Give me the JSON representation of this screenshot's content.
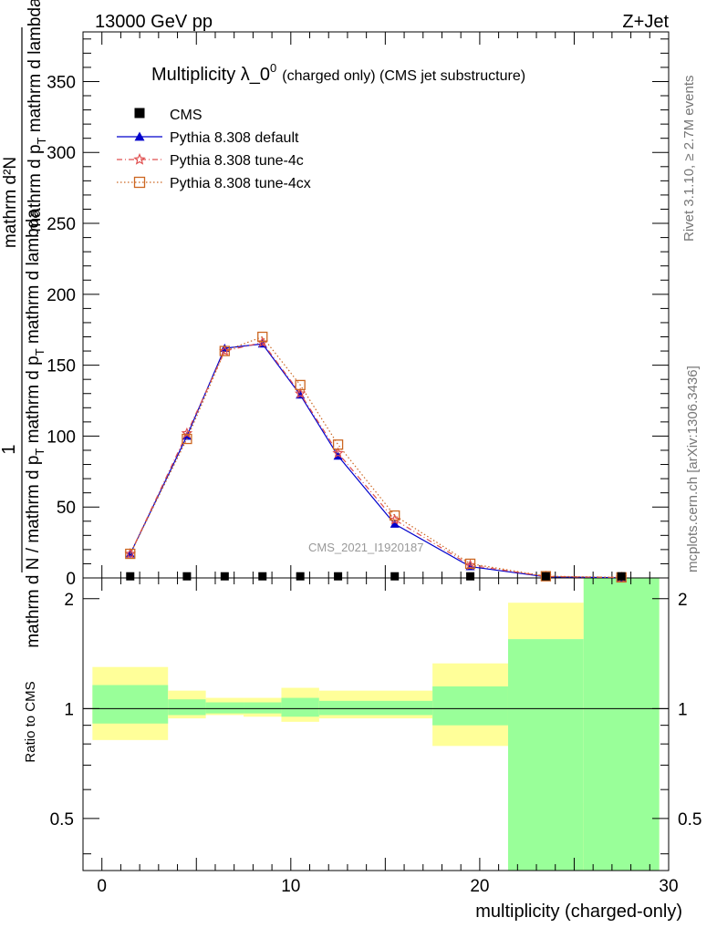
{
  "header": {
    "left": "13000 GeV pp",
    "right": "Z+Jet"
  },
  "title_main": "Multiplicity λ_0",
  "title_sup": "0",
  "title_small": "(charged only) (CMS jet substructure)",
  "side_top": "Rivet 3.1.10, ≥ 2.7M events",
  "side_bottom": "mcplots.cern.ch [arXiv:1306.3436]",
  "watermark": "CMS_2021_I1920187",
  "ylabel": {
    "one": "1",
    "frac_top": "mathrm d²N",
    "frac_top_b": "mathrm d p",
    "frac_top_sub": "T",
    "frac_top_c": " mathrm d lambda",
    "frac_bottom": "mathrm d N / mathrm d p",
    "frac_bottom_sub": "T",
    "frac_bottom_c": " mathrm d p",
    "frac_bottom_sub2": "T",
    "frac_bottom_d": " mathrm d lambda"
  },
  "ratio_ylabel": "Ratio to CMS",
  "xlabel": "multiplicity (charged-only)",
  "colors": {
    "default": "#0000cc",
    "tune4c": "#e05050",
    "tune4cx": "#cc6620",
    "band_inner": "#99ff99",
    "band_outer": "#ffff99"
  },
  "legend": [
    {
      "label": "CMS",
      "marker": "square"
    },
    {
      "label": "Pythia 8.308 default",
      "marker": "triangle"
    },
    {
      "label": "Pythia 8.308 tune-4c",
      "marker": "star"
    },
    {
      "label": "Pythia 8.308 tune-4cx",
      "marker": "open-square"
    }
  ],
  "chart_data": [
    {
      "type": "line",
      "panel": "main",
      "xlim": [
        -1,
        30
      ],
      "ylim": [
        0,
        385
      ],
      "yticks": [
        0,
        50,
        100,
        150,
        200,
        250,
        300,
        350
      ],
      "cms": {
        "x": [
          1.5,
          4.5,
          6.5,
          8.5,
          10.5,
          12.5,
          15.5,
          19.5,
          23.5,
          27.5
        ],
        "y": [
          0.5,
          0.5,
          0.5,
          0.5,
          0.5,
          0.5,
          0.5,
          0.5,
          0.5,
          0.5
        ]
      },
      "series": [
        {
          "name": "Pythia 8.308 default",
          "x": [
            1.5,
            4.5,
            6.5,
            8.5,
            10.5,
            12.5,
            15.5,
            19.5,
            23.5,
            27.5
          ],
          "y": [
            17,
            100,
            162,
            165,
            129,
            86,
            38,
            8,
            0.8,
            0.2
          ]
        },
        {
          "name": "Pythia 8.308 tune-4c",
          "x": [
            1.5,
            4.5,
            6.5,
            8.5,
            10.5,
            12.5,
            15.5,
            19.5,
            23.5,
            27.5
          ],
          "y": [
            17,
            102,
            160,
            166,
            130,
            88,
            41,
            9,
            1.0,
            0.3
          ]
        },
        {
          "name": "Pythia 8.308 tune-4cx",
          "x": [
            1.5,
            4.5,
            6.5,
            8.5,
            10.5,
            12.5,
            15.5,
            19.5,
            23.5,
            27.5
          ],
          "y": [
            17,
            98,
            160,
            170,
            136,
            94,
            44,
            10,
            1.2,
            0.4
          ]
        }
      ]
    },
    {
      "type": "area",
      "panel": "ratio",
      "ylabel": "Ratio to CMS",
      "xlabel": "multiplicity (charged-only)",
      "xlim": [
        -1,
        30
      ],
      "ylim": [
        0.36,
        2.28
      ],
      "log_y": true,
      "xticks": [
        0,
        10,
        20,
        30
      ],
      "yticks": [
        0.5,
        1,
        2
      ],
      "bins": [
        {
          "lo": -0.5,
          "hi": 3.5,
          "inner": [
            0.91,
            1.16
          ],
          "outer": [
            0.82,
            1.3
          ]
        },
        {
          "lo": 3.5,
          "hi": 5.5,
          "inner": [
            0.96,
            1.06
          ],
          "outer": [
            0.94,
            1.12
          ]
        },
        {
          "lo": 5.5,
          "hi": 7.5,
          "inner": [
            0.97,
            1.04
          ],
          "outer": [
            0.96,
            1.07
          ]
        },
        {
          "lo": 7.5,
          "hi": 9.5,
          "inner": [
            0.97,
            1.04
          ],
          "outer": [
            0.95,
            1.07
          ]
        },
        {
          "lo": 9.5,
          "hi": 11.5,
          "inner": [
            0.95,
            1.07
          ],
          "outer": [
            0.92,
            1.14
          ]
        },
        {
          "lo": 11.5,
          "hi": 17.5,
          "inner": [
            0.96,
            1.05
          ],
          "outer": [
            0.94,
            1.12
          ]
        },
        {
          "lo": 17.5,
          "hi": 21.5,
          "inner": [
            0.9,
            1.15
          ],
          "outer": [
            0.79,
            1.33
          ]
        },
        {
          "lo": 21.5,
          "hi": 25.5,
          "inner": [
            0.36,
            1.55
          ],
          "outer": [
            0.36,
            1.95
          ],
          "outer_gap": [
            0.55,
            1.55
          ]
        },
        {
          "lo": 25.5,
          "hi": 29.5,
          "inner": [
            0.36,
            2.28
          ],
          "outer": [
            0.36,
            2.28
          ]
        }
      ]
    }
  ]
}
